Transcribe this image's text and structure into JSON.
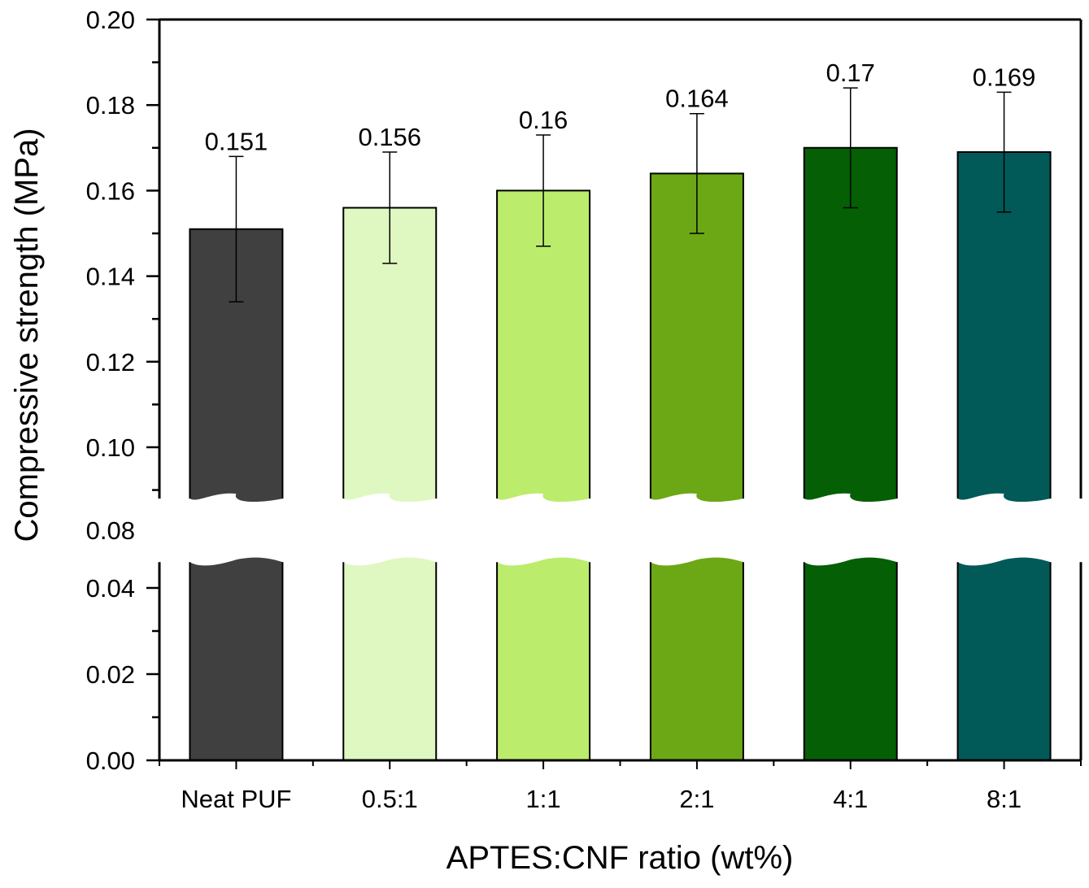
{
  "chart_data": {
    "type": "bar",
    "title": "",
    "xlabel": "APTES:CNF ratio (wt%)",
    "ylabel": "Compressive strength (MPa)",
    "categories": [
      "Neat PUF",
      "0.5:1",
      "1:1",
      "2:1",
      "4:1",
      "8:1"
    ],
    "values": [
      0.151,
      0.156,
      0.16,
      0.164,
      0.17,
      0.169
    ],
    "data_labels": [
      "0.151",
      "0.156",
      "0.16",
      "0.164",
      "0.17",
      "0.169"
    ],
    "error": [
      0.017,
      0.013,
      0.013,
      0.014,
      0.014,
      0.014
    ],
    "colors": [
      "#404040",
      "#dff7c0",
      "#bbec6c",
      "#6ca815",
      "#045f05",
      "#015a58"
    ],
    "ylim": [
      0,
      0.2
    ],
    "axis_break": [
      0.046,
      0.088
    ],
    "yticks_lower": [
      "0.00",
      "0.02",
      "0.04"
    ],
    "yticks_lower_values": [
      0,
      0.02,
      0.04
    ],
    "yticks_upper": [
      "0.10",
      "0.12",
      "0.14",
      "0.16",
      "0.18",
      "0.20"
    ],
    "yticks_upper_values": [
      0.1,
      0.12,
      0.14,
      0.16,
      0.18,
      0.2
    ],
    "break_label": "0.08",
    "grid": false,
    "legend": "none"
  }
}
